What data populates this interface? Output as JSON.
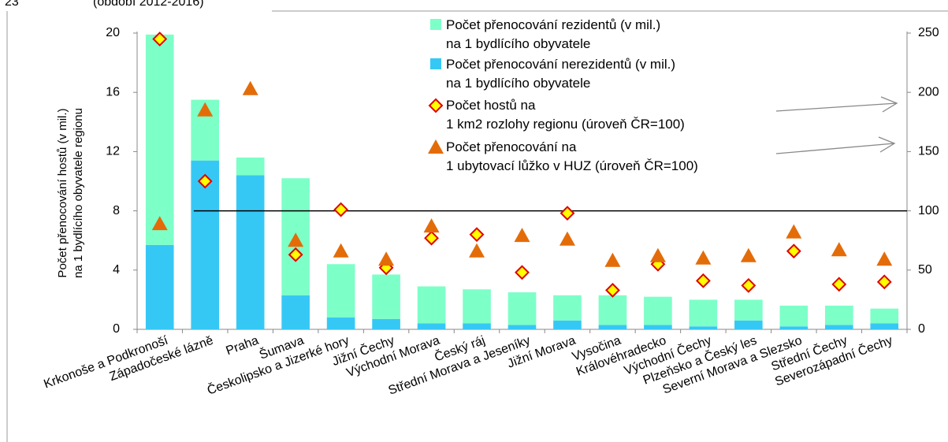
{
  "chart_data": {
    "type": "bar",
    "figure_number": "23",
    "subtitle": "(období 2012-2016)",
    "ylabel": "Počet přenocování hostů (v mil.)\nna 1 bydlícího obyvatele regionu",
    "categories": [
      "Krkonoše a Podkronoší",
      "Západočeské lázně",
      "Praha",
      "Šumava",
      "Českolipsko a Jizerké hory",
      "Jižní Čechy",
      "Východní Morava",
      "Český ráj",
      "Střední Morava a Jeseníky",
      "Jižní Morava",
      "Vysočina",
      "Královéhradecko",
      "Východní Čechy",
      "Plzeňsko a Český les",
      "Severní Morava a Slezsko",
      "Střední Čechy",
      "Severozápadní Čechy"
    ],
    "series": [
      {
        "name": "Počet přenocování rezidentů (v mil.)\nna 1 bydlícího obyvatele",
        "type": "bar",
        "color": "#7dffc8",
        "values": [
          14.2,
          4.1,
          1.2,
          7.9,
          3.6,
          3.0,
          2.5,
          2.3,
          2.2,
          1.7,
          2.0,
          1.9,
          1.8,
          1.4,
          1.4,
          1.3,
          1.0
        ]
      },
      {
        "name": "Počet přenocování nerezidentů (v mil.)\nna 1 bydlícího obyvatele",
        "type": "bar",
        "color": "#36c8f5",
        "values": [
          5.7,
          11.4,
          10.4,
          2.3,
          0.8,
          0.7,
          0.4,
          0.4,
          0.3,
          0.6,
          0.3,
          0.3,
          0.2,
          0.6,
          0.2,
          0.3,
          0.4
        ]
      },
      {
        "name": "Počet hostů na\n1 km2 rozlohy regionu (úroveň ČR=100)",
        "type": "scatter",
        "marker": "diamond",
        "color": "#ffff00",
        "edge_color": "#e00000",
        "axis": "y2",
        "values": [
          245,
          125,
          null,
          63,
          101,
          52,
          77,
          80,
          48,
          98,
          33,
          55,
          41,
          37,
          66,
          38,
          40
        ]
      },
      {
        "name": "Počet přenocování na\n1 ubytovací lůžko v HUZ  (úroveň ČR=100)",
        "type": "scatter",
        "marker": "triangle",
        "color": "#e36c09",
        "axis": "y2",
        "values": [
          89,
          185,
          203,
          75,
          66,
          59,
          87,
          66,
          79,
          76,
          58,
          62,
          60,
          62,
          82,
          67,
          59
        ]
      }
    ],
    "reference_line": {
      "value": 100,
      "axis": "y2"
    },
    "ylim": [
      0,
      20
    ],
    "yticks": [
      0,
      4,
      8,
      12,
      16,
      20
    ],
    "y2lim": [
      0,
      250
    ],
    "y2ticks": [
      0,
      50,
      100,
      150,
      200,
      250
    ]
  }
}
